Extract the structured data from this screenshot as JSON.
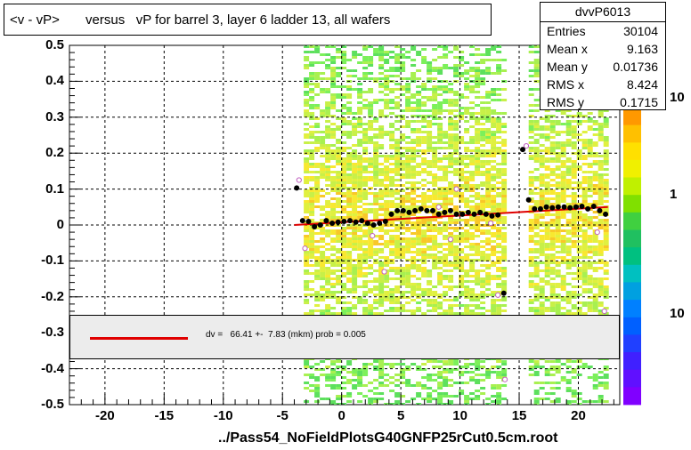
{
  "title": "<v - vP>       versus   vP for barrel 3, layer 6 ladder 13, all wafers",
  "stats": {
    "name": "dvvP6013",
    "rows": [
      {
        "key": "Entries",
        "value": "30104"
      },
      {
        "key": "Mean x",
        "value": "9.163"
      },
      {
        "key": "Mean y",
        "value": "0.01736"
      },
      {
        "key": "RMS x",
        "value": "8.424"
      },
      {
        "key": "RMS y",
        "value": "0.1715"
      }
    ]
  },
  "fit": {
    "text": "dv =   66.41 +-  7.83 (mkm) prob = 0.005",
    "line_color": "#e00000"
  },
  "footer": "../Pass54_NoFieldPlotsG40GNFP25rCut0.5cm.root",
  "colors": {
    "profile_points": "#000000",
    "fit_line": "#e00000",
    "open_markers": "#c060c0"
  },
  "chart_data": {
    "type": "heatmap",
    "xlim": [
      -23,
      23.5
    ],
    "ylim": [
      -0.5,
      0.5
    ],
    "x_ticks": [
      "-20",
      "-15",
      "-10",
      "-5",
      "0",
      "5",
      "10",
      "15",
      "20"
    ],
    "y_ticks": [
      "0.5",
      "0.4",
      "0.3",
      "0.2",
      "0.1",
      "0",
      "-0.1",
      "-0.2",
      "-0.3",
      "-0.4",
      "-0.5"
    ],
    "z_ticks": [
      "10",
      "1",
      "10"
    ],
    "grid": true,
    "heatmap_bands": [
      {
        "x_range": [
          -3.2,
          13.7
        ],
        "y_range": [
          -0.5,
          0.5
        ]
      },
      {
        "x_range": [
          15.8,
          22.3
        ],
        "y_range": [
          -0.5,
          0.5
        ]
      }
    ],
    "profile_points": [
      {
        "x": -3.8,
        "y": 0.103
      },
      {
        "x": -3.3,
        "y": 0.012
      },
      {
        "x": -2.8,
        "y": 0.01
      },
      {
        "x": -2.3,
        "y": -0.005
      },
      {
        "x": -1.8,
        "y": 0.0
      },
      {
        "x": -1.3,
        "y": 0.012
      },
      {
        "x": -0.8,
        "y": 0.005
      },
      {
        "x": -0.3,
        "y": 0.008
      },
      {
        "x": 0.2,
        "y": 0.01
      },
      {
        "x": 0.7,
        "y": 0.012
      },
      {
        "x": 1.2,
        "y": 0.008
      },
      {
        "x": 1.7,
        "y": 0.012
      },
      {
        "x": 2.2,
        "y": 0.005
      },
      {
        "x": 2.7,
        "y": 0.0
      },
      {
        "x": 3.2,
        "y": 0.005
      },
      {
        "x": 3.7,
        "y": 0.01
      },
      {
        "x": 4.2,
        "y": 0.03
      },
      {
        "x": 4.7,
        "y": 0.04
      },
      {
        "x": 5.2,
        "y": 0.04
      },
      {
        "x": 5.7,
        "y": 0.035
      },
      {
        "x": 6.2,
        "y": 0.04
      },
      {
        "x": 6.7,
        "y": 0.045
      },
      {
        "x": 7.2,
        "y": 0.04
      },
      {
        "x": 7.7,
        "y": 0.04
      },
      {
        "x": 8.2,
        "y": 0.03
      },
      {
        "x": 8.7,
        "y": 0.035
      },
      {
        "x": 9.2,
        "y": 0.04
      },
      {
        "x": 9.7,
        "y": 0.03
      },
      {
        "x": 10.2,
        "y": 0.03
      },
      {
        "x": 10.7,
        "y": 0.035
      },
      {
        "x": 11.2,
        "y": 0.03
      },
      {
        "x": 11.7,
        "y": 0.035
      },
      {
        "x": 12.2,
        "y": 0.03
      },
      {
        "x": 12.7,
        "y": 0.025
      },
      {
        "x": 13.2,
        "y": 0.028
      },
      {
        "x": 13.7,
        "y": -0.19
      },
      {
        "x": 15.3,
        "y": 0.21
      },
      {
        "x": 15.8,
        "y": 0.07
      },
      {
        "x": 16.3,
        "y": 0.045
      },
      {
        "x": 16.8,
        "y": 0.045
      },
      {
        "x": 17.3,
        "y": 0.05
      },
      {
        "x": 17.8,
        "y": 0.048
      },
      {
        "x": 18.3,
        "y": 0.05
      },
      {
        "x": 18.8,
        "y": 0.05
      },
      {
        "x": 19.3,
        "y": 0.048
      },
      {
        "x": 19.8,
        "y": 0.05
      },
      {
        "x": 20.3,
        "y": 0.052
      },
      {
        "x": 20.8,
        "y": 0.045
      },
      {
        "x": 21.3,
        "y": 0.052
      },
      {
        "x": 21.8,
        "y": 0.04
      },
      {
        "x": 22.3,
        "y": 0.03
      }
    ],
    "open_markers": [
      {
        "x": -3.6,
        "y": 0.125
      },
      {
        "x": -3.1,
        "y": -0.065
      },
      {
        "x": 2.6,
        "y": -0.03
      },
      {
        "x": 3.6,
        "y": -0.13
      },
      {
        "x": 8.2,
        "y": 0.05
      },
      {
        "x": 9.2,
        "y": -0.04
      },
      {
        "x": 9.7,
        "y": 0.1
      },
      {
        "x": 12.6,
        "y": 0.005
      },
      {
        "x": 13.2,
        "y": -0.195
      },
      {
        "x": 13.8,
        "y": -0.43
      },
      {
        "x": 15.6,
        "y": 0.22
      },
      {
        "x": 21.6,
        "y": -0.02
      },
      {
        "x": 22.2,
        "y": -0.24
      }
    ],
    "fit_line": {
      "x": [
        -4,
        22.5
      ],
      "y": [
        0.0,
        0.05
      ]
    }
  }
}
